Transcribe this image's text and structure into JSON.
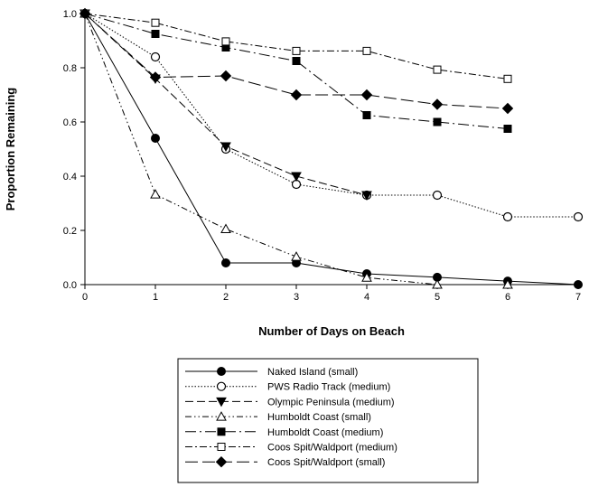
{
  "chart_data": {
    "type": "line",
    "title": "",
    "xlabel": "Number of Days on Beach",
    "ylabel": "Proportion Remaining",
    "xlim": [
      0,
      7
    ],
    "ylim": [
      0,
      1.0
    ],
    "x_ticks": [
      "0",
      "1",
      "2",
      "3",
      "4",
      "5",
      "6",
      "7"
    ],
    "y_ticks": [
      "0.0",
      "0.2",
      "0.4",
      "0.6",
      "0.8",
      "1.0"
    ],
    "grid": false,
    "legend_position": "bottom-center",
    "series": [
      {
        "name": "Naked Island (small)",
        "marker": "filled-circle",
        "line": "solid",
        "x": [
          0,
          1,
          2,
          3,
          4,
          5,
          6,
          7
        ],
        "y": [
          1.0,
          0.54,
          0.08,
          0.08,
          0.04,
          0.027,
          0.013,
          0.0
        ]
      },
      {
        "name": "PWS Radio Track (medium)",
        "marker": "open-circle",
        "line": "dotted",
        "x": [
          0,
          1,
          2,
          3,
          4,
          5,
          6,
          7
        ],
        "y": [
          1.0,
          0.84,
          0.5,
          0.37,
          0.33,
          0.33,
          0.25,
          0.25
        ]
      },
      {
        "name": "Olympic Peninsula (medium)",
        "marker": "filled-triangle-down",
        "line": "dash",
        "x": [
          0,
          1,
          2,
          3,
          4
        ],
        "y": [
          1.0,
          0.76,
          0.51,
          0.4,
          0.33
        ]
      },
      {
        "name": "Humboldt Coast (small)",
        "marker": "open-triangle",
        "line": "dash-dot-dot",
        "x": [
          0,
          1,
          2,
          3,
          4,
          5,
          6
        ],
        "y": [
          1.0,
          0.333,
          0.205,
          0.103,
          0.026,
          0.0,
          0.0
        ]
      },
      {
        "name": "Humboldt Coast (medium)",
        "marker": "filled-square",
        "line": "long-dash-dot",
        "x": [
          0,
          1,
          2,
          3,
          4,
          5,
          6
        ],
        "y": [
          1.0,
          0.925,
          0.875,
          0.825,
          0.625,
          0.6,
          0.575
        ]
      },
      {
        "name": "Coos Spit/Waldport (medium)",
        "marker": "open-square",
        "line": "dash-dot",
        "x": [
          0,
          1,
          2,
          3,
          4,
          5,
          6
        ],
        "y": [
          1.0,
          0.966,
          0.897,
          0.862,
          0.862,
          0.793,
          0.759
        ]
      },
      {
        "name": "Coos Spit/Waldport (small)",
        "marker": "filled-diamond",
        "line": "long-dash",
        "x": [
          0,
          1,
          2,
          3,
          4,
          5,
          6
        ],
        "y": [
          1.0,
          0.765,
          0.77,
          0.7,
          0.7,
          0.665,
          0.65
        ]
      }
    ]
  }
}
